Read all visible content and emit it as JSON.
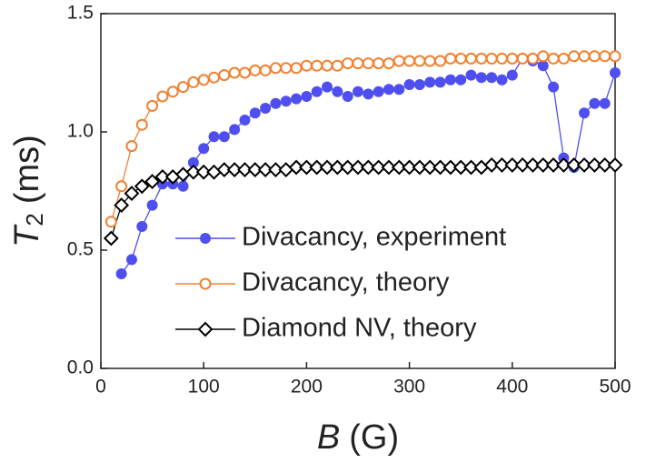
{
  "chart_data": {
    "type": "line",
    "xlabel": {
      "symbol": "B",
      "unit": "(G)"
    },
    "ylabel": {
      "symbol": "T",
      "subscript": "2",
      "unit": "(ms)"
    },
    "xlim": [
      0,
      500
    ],
    "xticks": [
      0,
      100,
      200,
      300,
      400,
      500
    ],
    "ylim": [
      0,
      1.5
    ],
    "yticks": [
      {
        "value": 0,
        "label": "0.0"
      },
      0.5,
      {
        "value": 1,
        "label": "1.0"
      },
      1.5
    ],
    "grid": false,
    "legend": "center-left",
    "series": [
      {
        "name": "Divacancy, experiment",
        "color": "#4f4ff0",
        "marker": "circle-filled",
        "x": [
          20,
          30,
          40,
          50,
          60,
          70,
          80,
          90,
          100,
          110,
          120,
          130,
          140,
          150,
          160,
          170,
          180,
          190,
          200,
          210,
          220,
          230,
          240,
          250,
          260,
          270,
          280,
          290,
          300,
          310,
          320,
          330,
          340,
          350,
          360,
          370,
          380,
          390,
          400,
          410,
          420,
          430,
          440,
          450,
          460,
          470,
          480,
          490,
          500
        ],
        "values": [
          0.4,
          0.46,
          0.6,
          0.69,
          0.78,
          0.78,
          0.77,
          0.87,
          0.93,
          0.98,
          0.98,
          1.01,
          1.05,
          1.08,
          1.1,
          1.12,
          1.13,
          1.14,
          1.15,
          1.17,
          1.19,
          1.17,
          1.15,
          1.17,
          1.16,
          1.17,
          1.18,
          1.18,
          1.2,
          1.2,
          1.21,
          1.21,
          1.22,
          1.22,
          1.24,
          1.23,
          1.23,
          1.22,
          1.24,
          1.31,
          1.3,
          1.28,
          1.19,
          0.89,
          0.85,
          1.08,
          1.12,
          1.12,
          1.25
        ]
      },
      {
        "name": "Divacancy, theory",
        "color": "#f28030",
        "marker": "circle-open",
        "x": [
          10,
          20,
          30,
          40,
          50,
          60,
          70,
          80,
          90,
          100,
          110,
          120,
          130,
          140,
          150,
          160,
          170,
          180,
          190,
          200,
          210,
          220,
          230,
          240,
          250,
          260,
          270,
          280,
          290,
          300,
          310,
          320,
          330,
          340,
          350,
          360,
          370,
          380,
          390,
          400,
          410,
          420,
          430,
          440,
          450,
          460,
          470,
          480,
          490,
          500
        ],
        "values": [
          0.62,
          0.77,
          0.94,
          1.03,
          1.11,
          1.15,
          1.17,
          1.19,
          1.21,
          1.22,
          1.23,
          1.24,
          1.25,
          1.25,
          1.26,
          1.26,
          1.27,
          1.27,
          1.27,
          1.28,
          1.28,
          1.28,
          1.28,
          1.29,
          1.29,
          1.29,
          1.29,
          1.29,
          1.3,
          1.3,
          1.3,
          1.3,
          1.3,
          1.31,
          1.31,
          1.31,
          1.31,
          1.31,
          1.31,
          1.31,
          1.31,
          1.31,
          1.32,
          1.31,
          1.31,
          1.32,
          1.32,
          1.32,
          1.32,
          1.32
        ]
      },
      {
        "name": "Diamond NV, theory",
        "color": "#000000",
        "marker": "diamond-open",
        "x": [
          10,
          20,
          30,
          40,
          50,
          60,
          70,
          80,
          90,
          100,
          110,
          120,
          130,
          140,
          150,
          160,
          170,
          180,
          190,
          200,
          210,
          220,
          230,
          240,
          250,
          260,
          270,
          280,
          290,
          300,
          310,
          320,
          330,
          340,
          350,
          360,
          370,
          380,
          390,
          400,
          410,
          420,
          430,
          440,
          450,
          460,
          470,
          480,
          490,
          500
        ],
        "values": [
          0.55,
          0.69,
          0.74,
          0.77,
          0.79,
          0.81,
          0.81,
          0.82,
          0.83,
          0.83,
          0.83,
          0.84,
          0.84,
          0.84,
          0.84,
          0.84,
          0.84,
          0.84,
          0.85,
          0.85,
          0.85,
          0.85,
          0.85,
          0.85,
          0.85,
          0.85,
          0.85,
          0.85,
          0.85,
          0.85,
          0.85,
          0.85,
          0.85,
          0.85,
          0.85,
          0.85,
          0.85,
          0.86,
          0.86,
          0.86,
          0.86,
          0.86,
          0.86,
          0.86,
          0.86,
          0.86,
          0.86,
          0.86,
          0.86,
          0.86
        ]
      }
    ]
  }
}
